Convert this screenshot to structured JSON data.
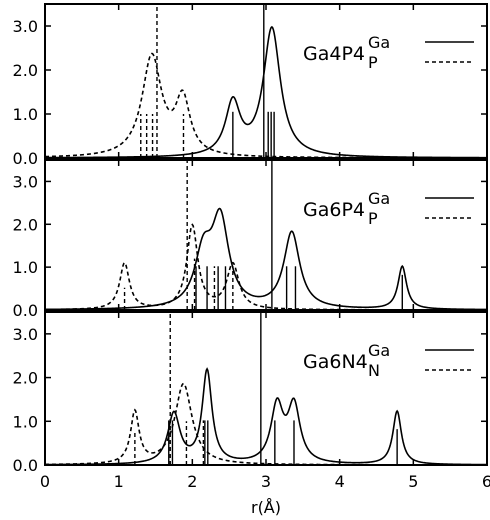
{
  "chart_data": {
    "type": "line",
    "xlabel": "r(Å)",
    "xlim": [
      0,
      6
    ],
    "ylim": [
      0,
      3.5
    ],
    "x_ticks": [
      0,
      1,
      2,
      3,
      4,
      5,
      6
    ],
    "x_tick_labels": [
      "0",
      "1",
      "2",
      "3",
      "4",
      "5",
      "6"
    ],
    "y_ticks": [
      0,
      1,
      2,
      3
    ],
    "y_tick_labels": [
      "0.0",
      "1.0",
      "2.0",
      "3.0"
    ],
    "grid": false,
    "legend_placement": "top-right",
    "panels": [
      {
        "name": "Ga4P4",
        "series": [
          {
            "name": "Ga",
            "style": "solid",
            "peaks": [
              {
                "x": 2.55,
                "h": 1.2,
                "w": 0.12
              },
              {
                "x": 3.08,
                "h": 2.92,
                "w": 0.14
              }
            ],
            "sticks": [
              {
                "x": 2.55,
                "h": 1.05
              },
              {
                "x": 2.97,
                "h": 3.55
              },
              {
                "x": 3.03,
                "h": 1.05
              },
              {
                "x": 3.07,
                "h": 1.05
              },
              {
                "x": 3.11,
                "h": 1.05
              }
            ]
          },
          {
            "name": "P",
            "style": "dashed",
            "peaks": [
              {
                "x": 1.45,
                "h": 2.28,
                "w": 0.16
              },
              {
                "x": 1.87,
                "h": 1.25,
                "w": 0.12
              }
            ],
            "sticks": [
              {
                "x": 1.3,
                "h": 1.0
              },
              {
                "x": 1.38,
                "h": 1.0
              },
              {
                "x": 1.46,
                "h": 1.0
              },
              {
                "x": 1.52,
                "h": 3.5
              },
              {
                "x": 1.88,
                "h": 1.0
              }
            ]
          }
        ]
      },
      {
        "name": "Ga6P4",
        "series": [
          {
            "name": "Ga",
            "style": "solid",
            "peaks": [
              {
                "x": 2.15,
                "h": 1.2,
                "w": 0.14
              },
              {
                "x": 2.38,
                "h": 2.0,
                "w": 0.14
              },
              {
                "x": 3.35,
                "h": 1.78,
                "w": 0.13
              },
              {
                "x": 4.85,
                "h": 1.0,
                "w": 0.07
              }
            ],
            "sticks": [
              {
                "x": 2.05,
                "h": 1.02
              },
              {
                "x": 2.2,
                "h": 1.02
              },
              {
                "x": 2.35,
                "h": 1.02
              },
              {
                "x": 2.45,
                "h": 1.02
              },
              {
                "x": 3.08,
                "h": 3.6
              },
              {
                "x": 3.28,
                "h": 1.02
              },
              {
                "x": 3.4,
                "h": 1.02
              },
              {
                "x": 4.85,
                "h": 0.82
              }
            ]
          },
          {
            "name": "P",
            "style": "dashed",
            "peaks": [
              {
                "x": 1.08,
                "h": 1.08,
                "w": 0.08
              },
              {
                "x": 2.0,
                "h": 1.95,
                "w": 0.09
              },
              {
                "x": 2.55,
                "h": 1.05,
                "w": 0.1
              }
            ],
            "sticks": [
              {
                "x": 1.08,
                "h": 0.52
              },
              {
                "x": 1.93,
                "h": 3.5
              },
              {
                "x": 2.03,
                "h": 1.2
              },
              {
                "x": 2.3,
                "h": 1.02
              },
              {
                "x": 2.55,
                "h": 1.02
              }
            ]
          }
        ]
      },
      {
        "name": "Ga6N4",
        "series": [
          {
            "name": "Ga",
            "style": "solid",
            "peaks": [
              {
                "x": 1.75,
                "h": 1.15,
                "w": 0.1
              },
              {
                "x": 2.2,
                "h": 2.12,
                "w": 0.08
              },
              {
                "x": 3.15,
                "h": 1.3,
                "w": 0.1
              },
              {
                "x": 3.38,
                "h": 1.3,
                "w": 0.1
              },
              {
                "x": 4.78,
                "h": 1.22,
                "w": 0.07
              }
            ],
            "sticks": [
              {
                "x": 1.68,
                "h": 1.02
              },
              {
                "x": 1.73,
                "h": 1.02
              },
              {
                "x": 2.17,
                "h": 1.02
              },
              {
                "x": 2.21,
                "h": 1.02
              },
              {
                "x": 2.93,
                "h": 3.55
              },
              {
                "x": 3.12,
                "h": 1.02
              },
              {
                "x": 3.38,
                "h": 1.02
              },
              {
                "x": 4.78,
                "h": 0.82
              }
            ]
          },
          {
            "name": "N",
            "style": "dashed",
            "peaks": [
              {
                "x": 1.22,
                "h": 1.18,
                "w": 0.07
              },
              {
                "x": 1.88,
                "h": 1.85,
                "w": 0.14
              }
            ],
            "sticks": [
              {
                "x": 1.22,
                "h": 0.75
              },
              {
                "x": 1.7,
                "h": 3.5
              },
              {
                "x": 1.92,
                "h": 1.0
              },
              {
                "x": 2.15,
                "h": 1.02
              }
            ]
          }
        ]
      }
    ]
  }
}
